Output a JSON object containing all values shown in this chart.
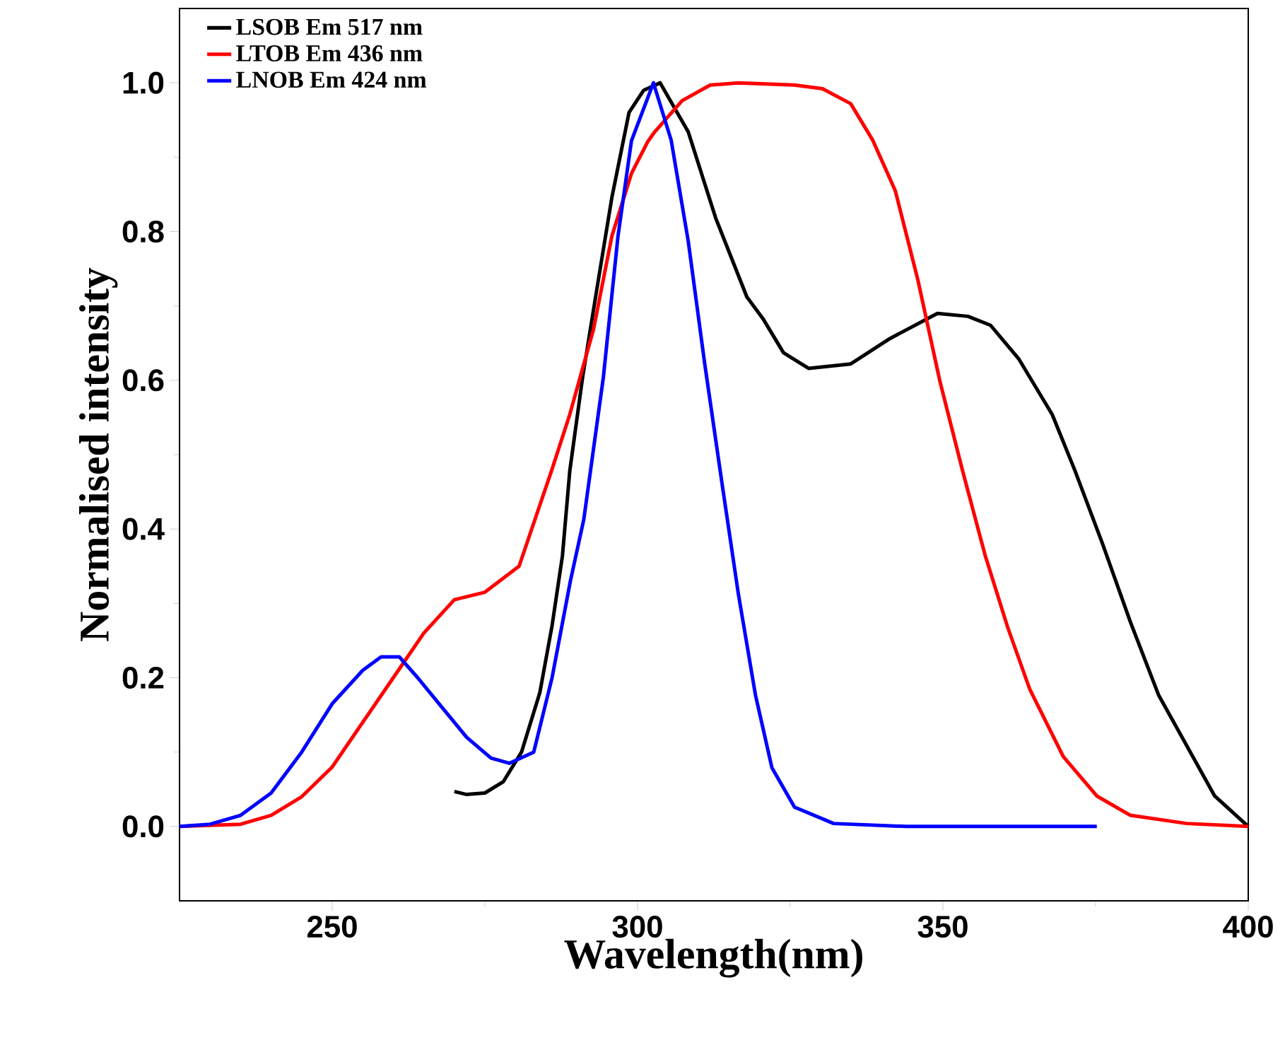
{
  "chart_data": {
    "type": "line",
    "xlabel": "Wavelength(nm)",
    "ylabel": "Normalised intensity",
    "xlim": [
      225,
      400
    ],
    "ylim": [
      -0.1,
      1.1
    ],
    "xticks": [
      250,
      300,
      350,
      400
    ],
    "yticks": [
      {
        "value": 0,
        "label": "0.0"
      },
      {
        "value": 0.2,
        "label": "0.2"
      },
      {
        "value": 0.4,
        "label": "0.4"
      },
      {
        "value": 0.6,
        "label": "0.6"
      },
      {
        "value": 0.8,
        "label": "0.8"
      },
      {
        "value": 1,
        "label": "1.0"
      }
    ],
    "grid": false,
    "legend": "top left",
    "marker": "none",
    "line_style": "solid",
    "series": [
      {
        "name": "LSOB Em 517 nm",
        "color": "#000000",
        "x": [
          270,
          272,
          275,
          278,
          281,
          284,
          286,
          287.7,
          288.9,
          291,
          293.5,
          295.8,
          298.6,
          301,
          303.7,
          308.3,
          312.8,
          317.9,
          320.6,
          323.9,
          328,
          334.9,
          341.3,
          349.1,
          354.1,
          357.8,
          362.4,
          367.9,
          371.6,
          376.1,
          380.7,
          385.3,
          389.9,
          394.5,
          400
        ],
        "values": [
          0.047,
          0.043,
          0.045,
          0.06,
          0.1,
          0.18,
          0.27,
          0.364,
          0.478,
          0.604,
          0.731,
          0.846,
          0.96,
          0.99,
          1.0,
          0.934,
          0.818,
          0.712,
          0.682,
          0.637,
          0.616,
          0.622,
          0.656,
          0.69,
          0.686,
          0.674,
          0.629,
          0.554,
          0.479,
          0.381,
          0.275,
          0.177,
          0.109,
          0.041,
          0.0
        ]
      },
      {
        "name": "LTOB Em 436 nm",
        "color": "#ff0000",
        "x": [
          225,
          235,
          240,
          245,
          250,
          255,
          260,
          265,
          270,
          275,
          280.6,
          285.9,
          288.9,
          292.8,
          295.8,
          299,
          301.6,
          302.8,
          307.3,
          311.9,
          316.5,
          325.7,
          330.3,
          334.9,
          338.5,
          342.2,
          345.9,
          349.5,
          353.2,
          356.9,
          360.6,
          364.2,
          369.7,
          375.2,
          380.7,
          389.9,
          400
        ],
        "values": [
          0,
          0.003,
          0.015,
          0.04,
          0.08,
          0.14,
          0.2,
          0.26,
          0.305,
          0.315,
          0.35,
          0.478,
          0.554,
          0.669,
          0.794,
          0.878,
          0.92,
          0.934,
          0.976,
          0.997,
          1.0,
          0.997,
          0.992,
          0.972,
          0.923,
          0.855,
          0.735,
          0.599,
          0.479,
          0.365,
          0.268,
          0.185,
          0.094,
          0.041,
          0.015,
          0.004,
          0.0
        ]
      },
      {
        "name": "LNOB Em 424 nm",
        "color": "#0000ff",
        "x": [
          225,
          230,
          235,
          240,
          245,
          250,
          255,
          258,
          261,
          264,
          268,
          272,
          276,
          279,
          283,
          286,
          289,
          291.2,
          294.4,
          296.8,
          299,
          302.6,
          305.5,
          308.3,
          311,
          313.8,
          316.5,
          319.3,
          322,
          325.7,
          332.1,
          344,
          375.2
        ],
        "values": [
          0,
          0.003,
          0.015,
          0.045,
          0.1,
          0.165,
          0.21,
          0.228,
          0.228,
          0.2,
          0.16,
          0.12,
          0.092,
          0.085,
          0.1,
          0.2,
          0.33,
          0.413,
          0.604,
          0.794,
          0.922,
          1.0,
          0.923,
          0.787,
          0.622,
          0.463,
          0.313,
          0.177,
          0.079,
          0.026,
          0.004,
          0.0,
          0.0
        ]
      }
    ]
  }
}
